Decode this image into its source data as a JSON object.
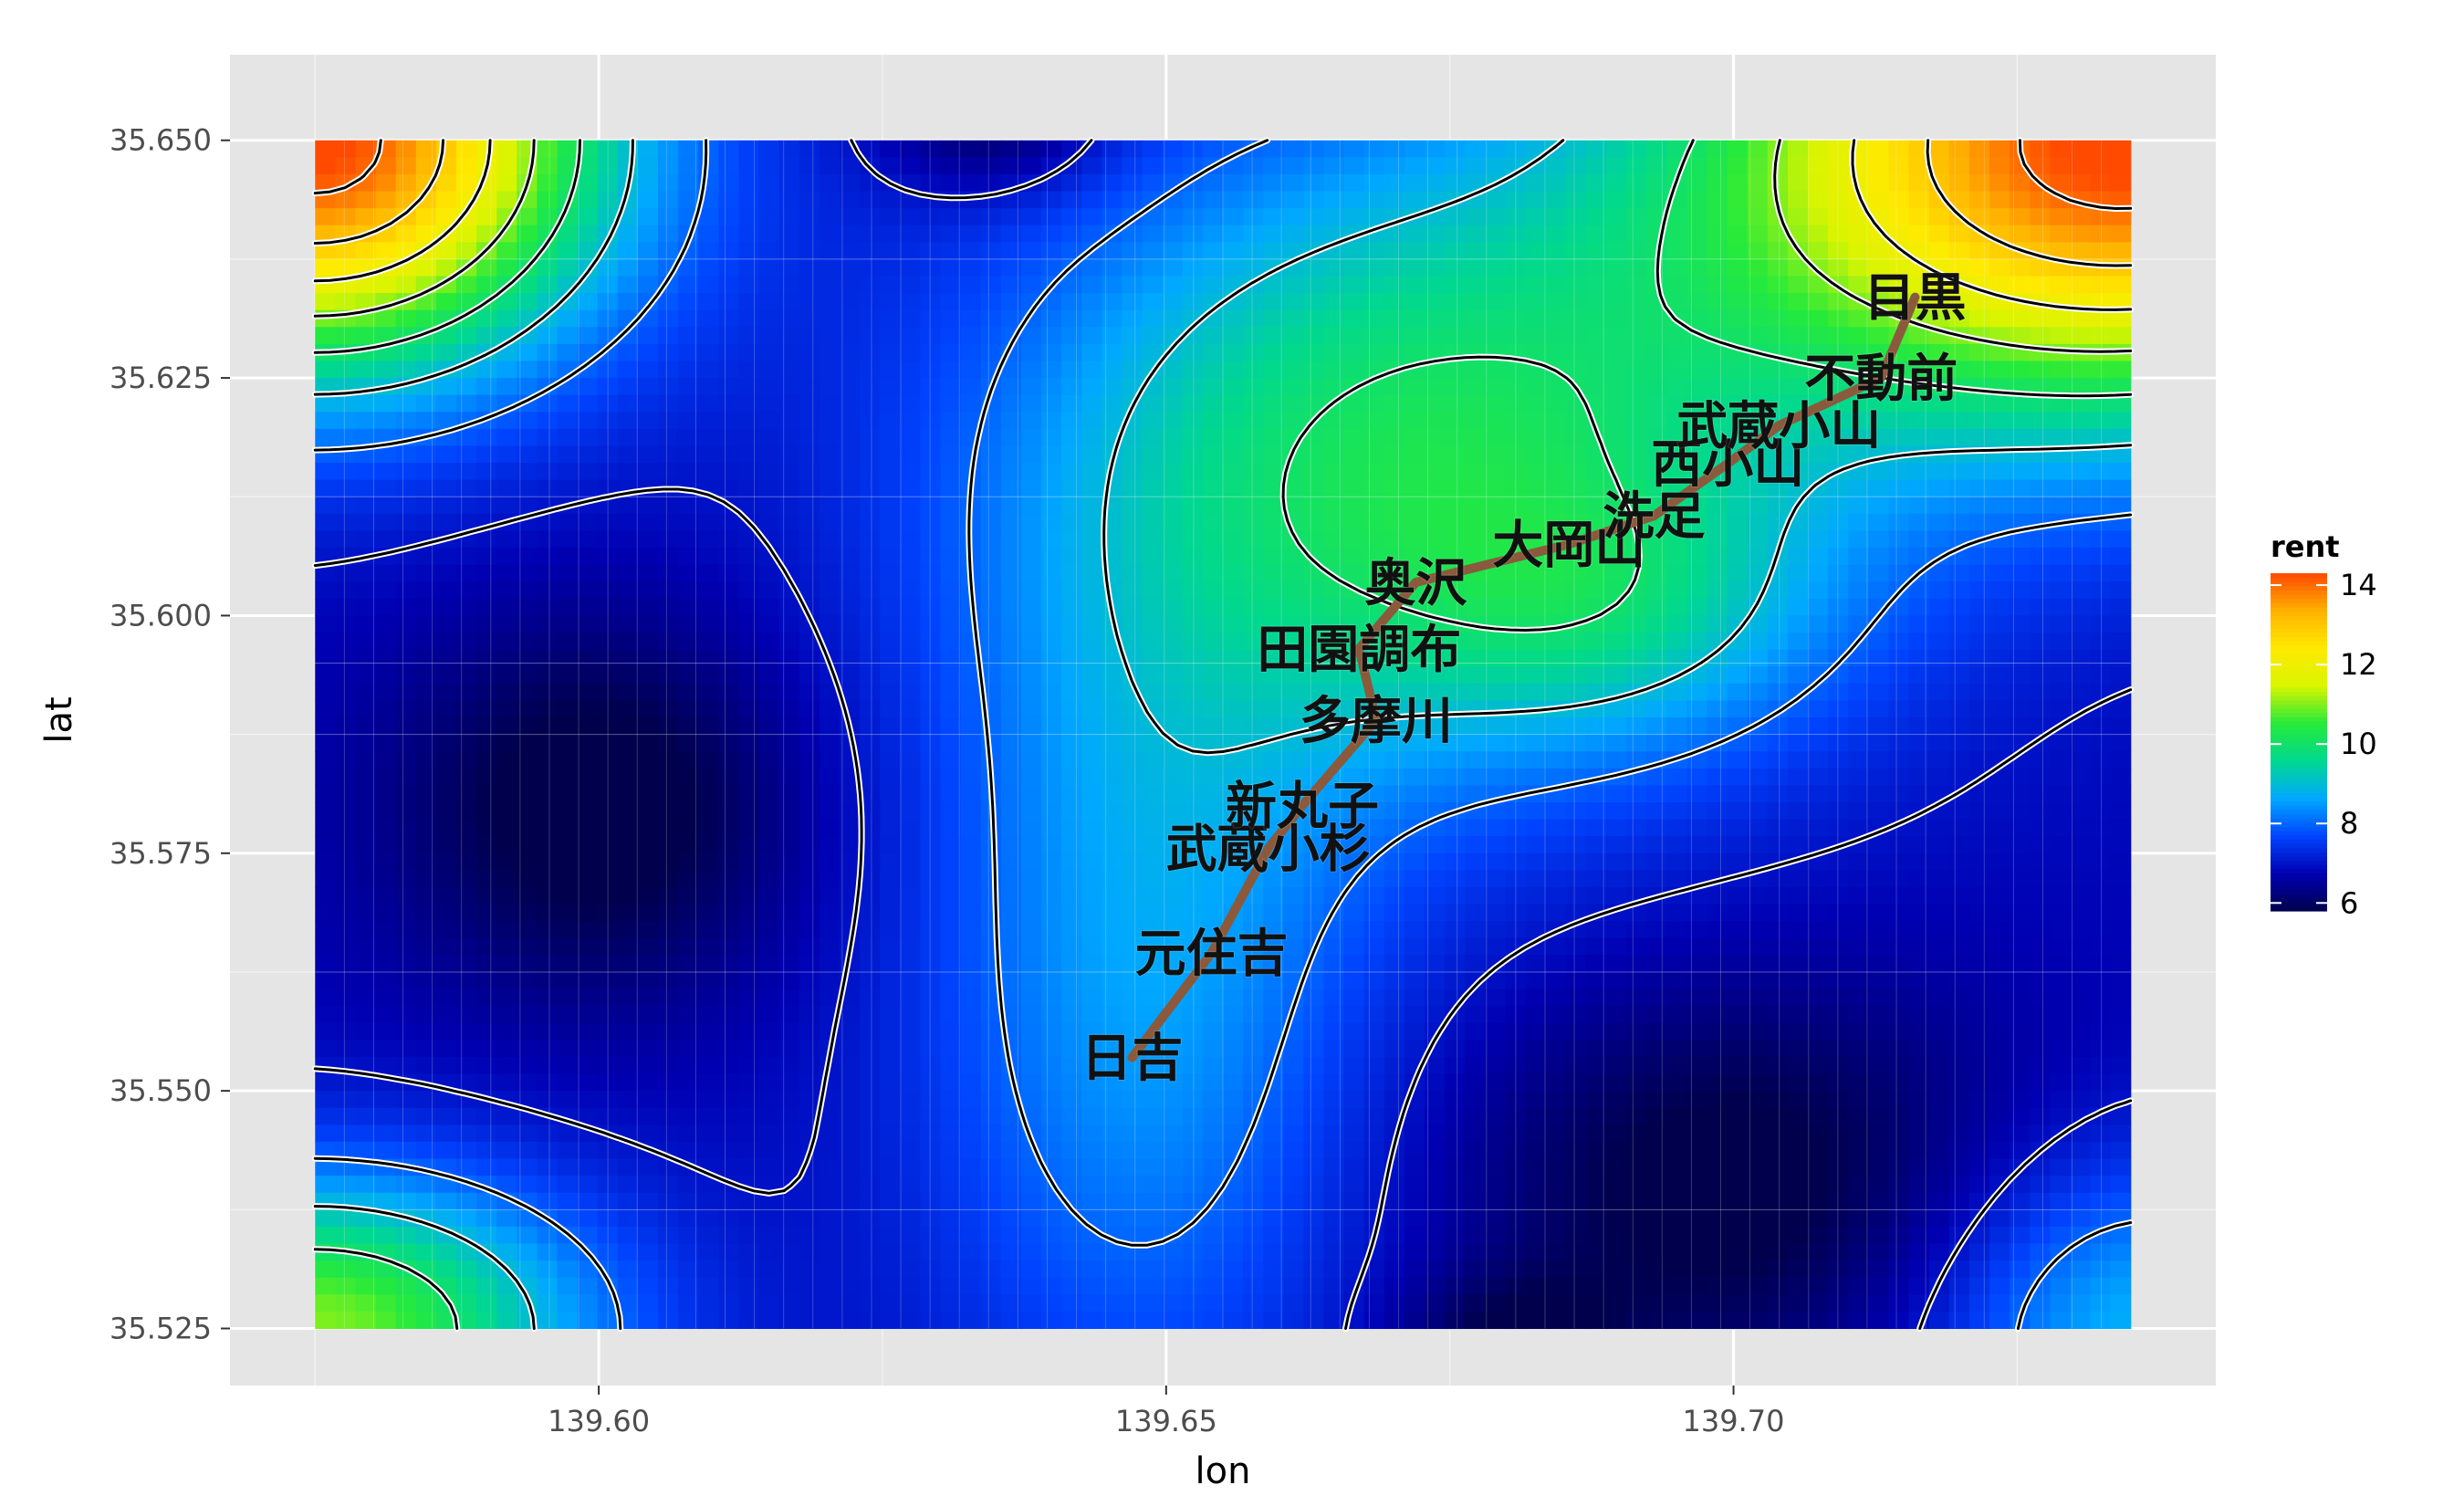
{
  "chart_data": {
    "type": "heatmap",
    "xlabel": "lon",
    "ylabel": "lat",
    "xlim": [
      139.5675,
      139.7425
    ],
    "ylim": [
      35.519,
      35.659
    ],
    "heat_x_range": [
      139.575,
      139.735
    ],
    "heat_y_range": [
      35.525,
      35.65
    ],
    "x_ticks": [
      139.6,
      139.65,
      139.7
    ],
    "x_tick_labels": [
      "139.60",
      "139.65",
      "139.70"
    ],
    "y_ticks": [
      35.525,
      35.55,
      35.575,
      35.6,
      35.625,
      35.65
    ],
    "y_tick_labels": [
      "35.525",
      "35.550",
      "35.575",
      "35.600",
      "35.625",
      "35.650"
    ],
    "grid": true,
    "legend": {
      "title": "rent",
      "position": "right",
      "min": 5.8,
      "max": 14.3,
      "breaks": [
        6,
        8,
        10,
        12,
        14
      ],
      "break_labels": [
        "6",
        "8",
        "10",
        "12",
        "14"
      ],
      "colors": [
        "#00004C",
        "#0000B2",
        "#0044FF",
        "#00A8FF",
        "#00D890",
        "#26EA3A",
        "#D8F500",
        "#FFEA00",
        "#FFB200",
        "#FF4A00"
      ]
    },
    "route_color": "#8B5A3C",
    "route": [
      {
        "name": "日吉",
        "lon": 139.647,
        "lat": 35.5535
      },
      {
        "name": "元住吉",
        "lon": 139.654,
        "lat": 35.5645
      },
      {
        "name": "武蔵小杉",
        "lon": 139.659,
        "lat": 35.5755
      },
      {
        "name": "新丸子",
        "lon": 139.662,
        "lat": 35.58
      },
      {
        "name": "多摩川",
        "lon": 139.6685,
        "lat": 35.589
      },
      {
        "name": "田園調布",
        "lon": 139.667,
        "lat": 35.5965
      },
      {
        "name": "奥沢",
        "lon": 139.672,
        "lat": 35.6035
      },
      {
        "name": "大岡山",
        "lon": 139.6855,
        "lat": 35.6075
      },
      {
        "name": "洗足",
        "lon": 139.693,
        "lat": 35.6105
      },
      {
        "name": "西小山",
        "lon": 139.6995,
        "lat": 35.616
      },
      {
        "name": "武蔵小山",
        "lon": 139.704,
        "lat": 35.62
      },
      {
        "name": "不動前",
        "lon": 139.713,
        "lat": 35.625
      },
      {
        "name": "目黒",
        "lon": 139.716,
        "lat": 35.6335
      }
    ]
  }
}
